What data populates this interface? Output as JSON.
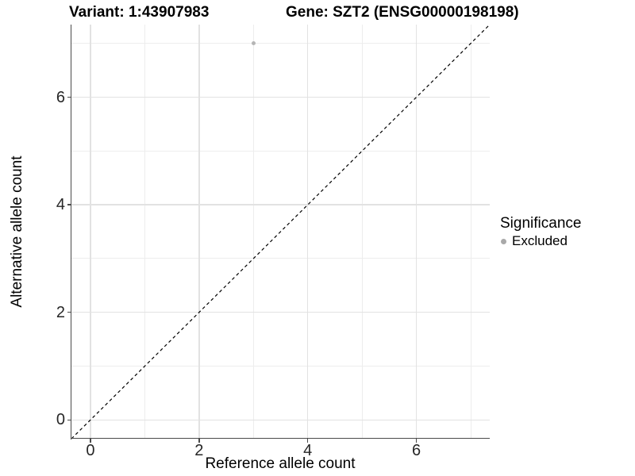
{
  "chart_data": {
    "type": "scatter",
    "title_left": "Variant: 1:43907983",
    "title_right": "Gene: SZT2 (ENSG00000198198)",
    "xlabel": "Reference allele count",
    "ylabel": "Alternative allele count",
    "xlim": [
      -0.35,
      7.35
    ],
    "ylim": [
      -0.35,
      7.35
    ],
    "x_ticks": [
      0,
      2,
      4,
      6
    ],
    "y_ticks": [
      0,
      2,
      4,
      6
    ],
    "x_minor_gridlines": [
      1,
      3,
      5,
      7
    ],
    "y_minor_gridlines": [
      1,
      3,
      5,
      7
    ],
    "grid": true,
    "series": [
      {
        "name": "Excluded",
        "color": "#b5b5b5",
        "points": [
          {
            "x": 3,
            "y": 7
          }
        ]
      }
    ],
    "reference_line": {
      "type": "identity",
      "slope": 1,
      "intercept": 0,
      "style": "dashed",
      "color": "#000000"
    },
    "legend": {
      "title": "Significance",
      "position": "right",
      "entries": [
        {
          "label": "Excluded",
          "color": "#a9a9a9"
        }
      ]
    }
  },
  "colors": {
    "background": "#ffffff",
    "grid_major": "#e2e2e2",
    "grid_minor": "#ededed",
    "axis_line": "#4a4a4a",
    "tick_label": "#262626",
    "text": "#000000",
    "point": "#b5b5b5"
  }
}
